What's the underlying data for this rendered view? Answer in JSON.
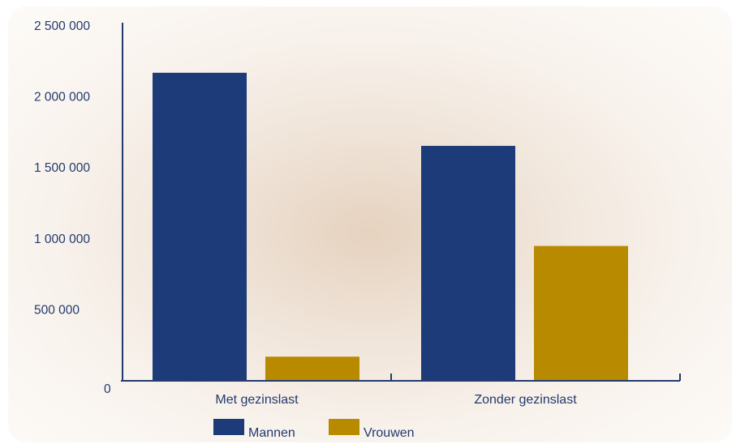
{
  "chart_data": {
    "type": "bar",
    "categories": [
      "Met gezinslast",
      "Zonder gezinslast"
    ],
    "series": [
      {
        "name": "Mannen",
        "color": "#1c3b78",
        "values": [
          2170000,
          1655000
        ]
      },
      {
        "name": "Vrouwen",
        "color": "#b88a00",
        "values": [
          170000,
          950000
        ]
      }
    ],
    "ylim": [
      0,
      2500000
    ],
    "yticks": [
      0,
      500000,
      1000000,
      1500000,
      2000000,
      2500000
    ],
    "ytick_labels": [
      "0",
      "500  000",
      "1 000 000",
      "1 500 000",
      "2 000 000",
      "2 500 000"
    ],
    "grid": false,
    "legend": "bottom",
    "axis_color": "#223a6e"
  }
}
